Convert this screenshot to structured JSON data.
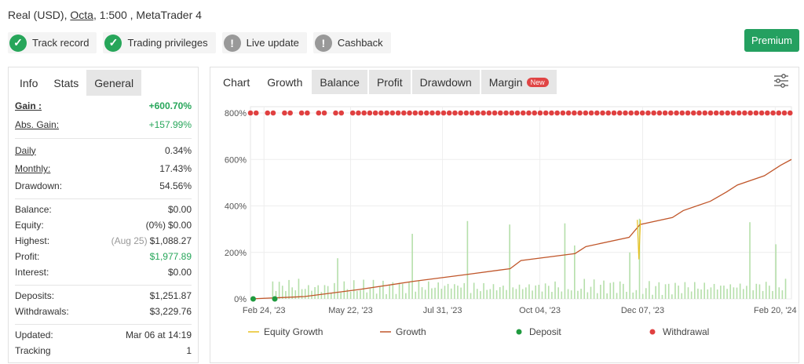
{
  "header": {
    "account_prefix": "Real (USD),",
    "broker": "Octa",
    "account_suffix": ", 1:500 , MetaTrader 4",
    "premium_label": "Premium"
  },
  "badges": [
    {
      "label": "Track record",
      "icon": "check-icon"
    },
    {
      "label": "Trading privileges",
      "icon": "check-icon"
    },
    {
      "label": "Live update",
      "icon": "exclamation-icon"
    },
    {
      "label": "Cashback",
      "icon": "exclamation-icon"
    }
  ],
  "left_tabs": [
    "Info",
    "Stats",
    "General"
  ],
  "stats": {
    "gain_label": "Gain :",
    "gain": "+600.70%",
    "abs_gain_label": "Abs. Gain:",
    "abs_gain": "+157.99%",
    "daily_label": "Daily",
    "daily": "0.34%",
    "monthly_label": "Monthly:",
    "monthly": "17.43%",
    "drawdown_label": "Drawdown:",
    "drawdown": "54.56%",
    "balance_label": "Balance:",
    "balance": "$0.00",
    "equity_label": "Equity:",
    "equity_pct": "(0%)",
    "equity": "$0.00",
    "highest_label": "Highest:",
    "highest_date": "(Aug 25)",
    "highest": "$1,088.27",
    "profit_label": "Profit:",
    "profit": "$1,977.89",
    "interest_label": "Interest:",
    "interest": "$0.00",
    "deposits_label": "Deposits:",
    "deposits": "$1,251.87",
    "withdrawals_label": "Withdrawals:",
    "withdrawals": "$3,229.76",
    "updated_label": "Updated:",
    "updated": "Mar 06 at 14:19",
    "tracking_label": "Tracking",
    "tracking": "1"
  },
  "right_tabs": {
    "chart": "Chart",
    "growth": "Growth",
    "balance": "Balance",
    "profit": "Profit",
    "drawdown": "Drawdown",
    "margin": "Margin",
    "margin_badge": "New"
  },
  "colors": {
    "green": "#27a65a",
    "growth_line": "#c0562a",
    "equity_line": "#e8c020",
    "bars": "#b5dfaa",
    "withdrawal_dot": "#e04040",
    "deposit_dot": "#1f9a3e"
  },
  "chart_data": {
    "type": "line",
    "ylim": [
      0,
      800
    ],
    "y_ticks": [
      "0%",
      "200%",
      "400%",
      "600%",
      "800%"
    ],
    "x_ticks": [
      "Feb 24, '23",
      "May 22, '23",
      "Jul 31, '23",
      "Oct 04, '23",
      "Dec 07, '23",
      "Feb 20, '24"
    ],
    "legend": [
      "Equity Growth",
      "Growth",
      "Deposit",
      "Withdrawal"
    ],
    "series": [
      {
        "name": "Growth",
        "x": [
          0,
          10,
          20,
          30,
          40,
          48,
          50,
          60,
          62,
          70,
          72,
          78,
          80,
          85,
          88,
          90,
          95,
          98,
          100
        ],
        "values": [
          0,
          10,
          40,
          75,
          105,
          130,
          165,
          195,
          225,
          265,
          320,
          350,
          380,
          420,
          460,
          490,
          530,
          575,
          600
        ]
      }
    ],
    "deposit_dots_x": [
      0.5,
      4.5
    ],
    "withdrawal_dots_x": "dense along top at 800%"
  }
}
